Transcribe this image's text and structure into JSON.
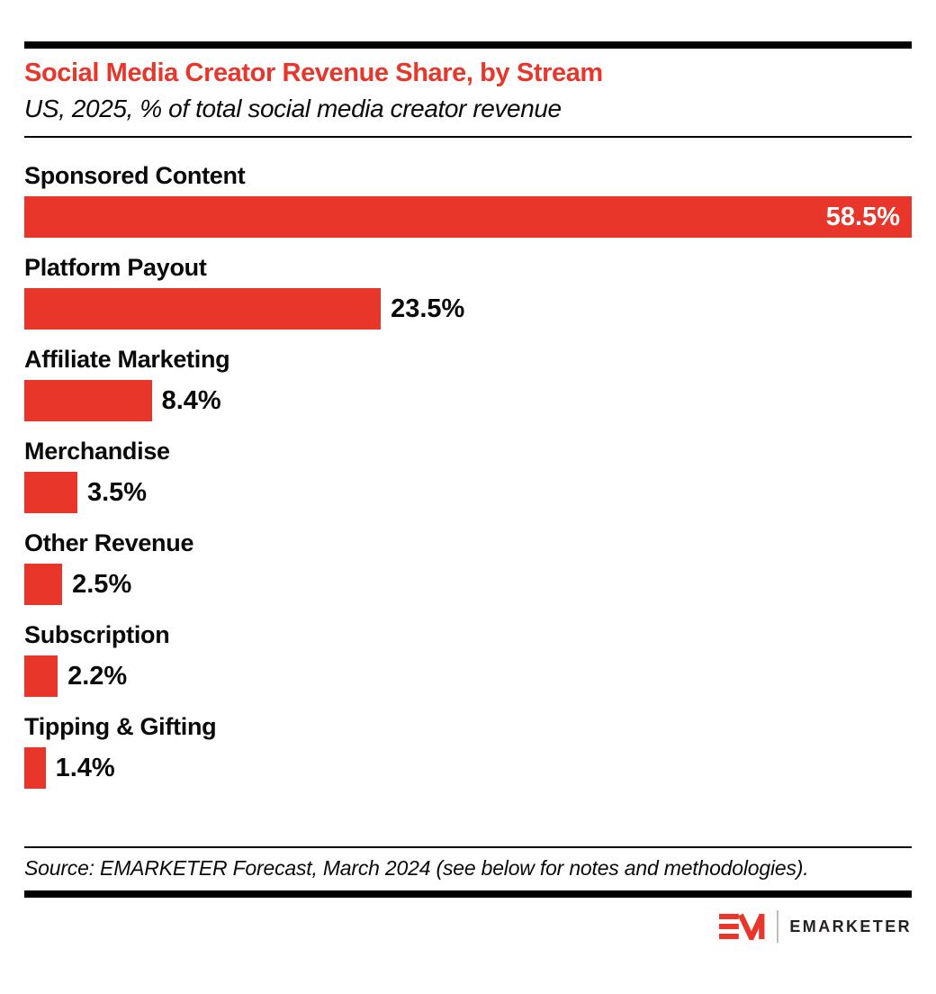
{
  "chart_data": {
    "type": "bar",
    "orientation": "horizontal",
    "title": "Social Media Creator Revenue Share, by Stream",
    "subtitle": "US, 2025, % of total social media creator revenue",
    "categories": [
      "Sponsored Content",
      "Platform Payout",
      "Affiliate Marketing",
      "Merchandise",
      "Other Revenue",
      "Subscription",
      "Tipping & Gifting"
    ],
    "values": [
      58.5,
      23.5,
      8.4,
      3.5,
      2.5,
      2.2,
      1.4
    ],
    "value_labels": [
      "58.5%",
      "23.5%",
      "8.4%",
      "3.5%",
      "2.5%",
      "2.2%",
      "1.4%"
    ],
    "value_suffix": "%",
    "xlim": [
      0,
      58.5
    ],
    "bar_color": "#E8362A",
    "first_value_inside": true,
    "grid": false,
    "legend": "none"
  },
  "header": {
    "title_color": "#E8362A"
  },
  "footer": {
    "source": "Source: EMARKETER Forecast, March 2024 (see below for notes and methodologies).",
    "logo_text": "EMARKETER"
  }
}
